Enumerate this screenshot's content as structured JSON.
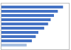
{
  "chart_data": {
    "type": "bar",
    "orientation": "horizontal",
    "categories": [
      null,
      null,
      null,
      null,
      null,
      null,
      null,
      null,
      null,
      null
    ],
    "values": [
      96,
      88,
      82,
      77,
      73,
      67,
      58,
      54,
      48,
      40
    ],
    "colors": [
      "#4472c4",
      "#4472c4",
      "#4472c4",
      "#4472c4",
      "#4472c4",
      "#4472c4",
      "#4472c4",
      "#4472c4",
      "#4472c4",
      "#a8bfe0"
    ],
    "xlim": [
      0,
      105
    ],
    "tick_labels": false,
    "grid": false
  }
}
